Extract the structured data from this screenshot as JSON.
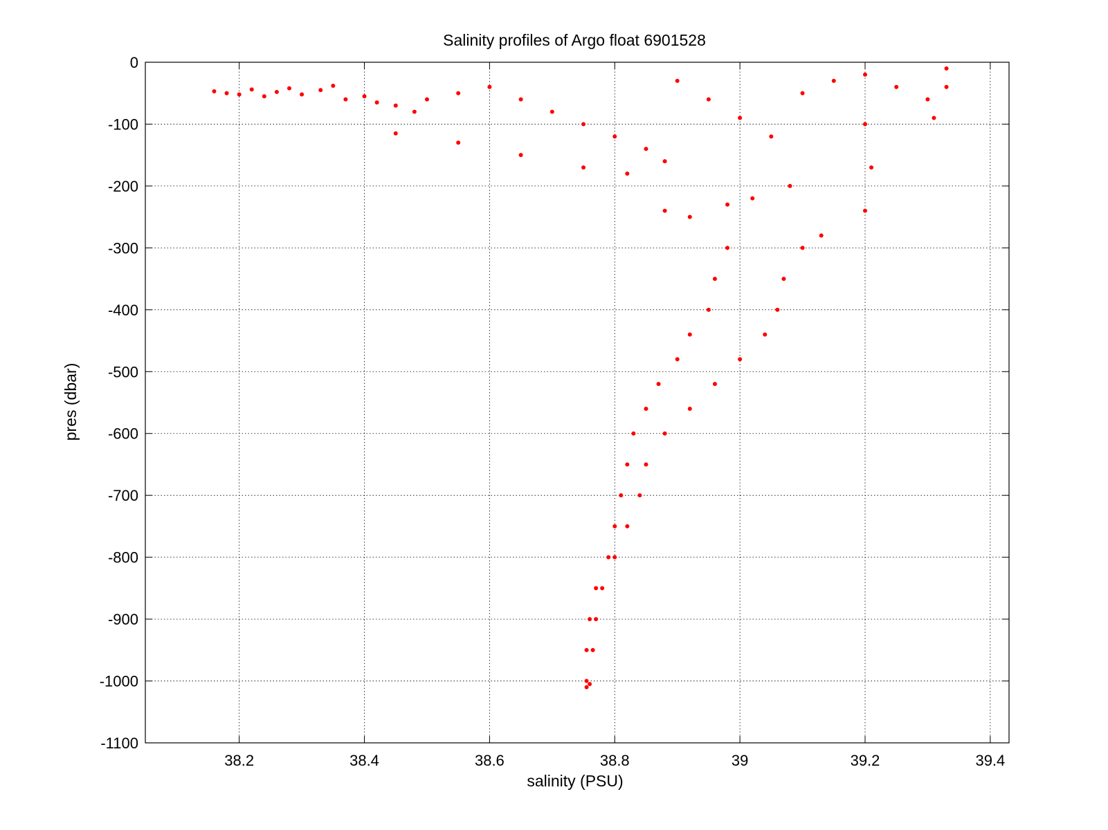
{
  "chart_data": {
    "type": "scatter",
    "title": "Salinity profiles of Argo float 6901528",
    "xlabel": "salinity (PSU)",
    "ylabel": "pres (dbar)",
    "xlim": [
      38.05,
      39.43
    ],
    "ylim": [
      -1100,
      0
    ],
    "xticks": [
      38.2,
      38.4,
      38.6,
      38.8,
      39,
      39.2,
      39.4
    ],
    "xtick_labels": [
      "38.2",
      "38.4",
      "38.6",
      "38.8",
      "39",
      "39.2",
      "39.4"
    ],
    "yticks": [
      0,
      -100,
      -200,
      -300,
      -400,
      -500,
      -600,
      -700,
      -800,
      -900,
      -1000,
      -1100
    ],
    "ytick_labels": [
      "0",
      "-100",
      "-200",
      "-300",
      "-400",
      "-500",
      "-600",
      "-700",
      "-800",
      "-900",
      "-1000",
      "-1100"
    ],
    "grid": true,
    "grid_style": "dotted",
    "series": [
      {
        "marker": "point",
        "color": "#ff0000",
        "points": [
          [
            38.16,
            -47
          ],
          [
            38.18,
            -50
          ],
          [
            38.2,
            -52
          ],
          [
            38.22,
            -44
          ],
          [
            38.24,
            -55
          ],
          [
            38.26,
            -48
          ],
          [
            38.28,
            -42
          ],
          [
            38.3,
            -52
          ],
          [
            38.33,
            -45
          ],
          [
            38.35,
            -38
          ],
          [
            38.37,
            -60
          ],
          [
            38.4,
            -55
          ],
          [
            38.42,
            -65
          ],
          [
            38.45,
            -70
          ],
          [
            38.48,
            -80
          ],
          [
            38.5,
            -60
          ],
          [
            38.55,
            -50
          ],
          [
            38.6,
            -40
          ],
          [
            38.65,
            -60
          ],
          [
            38.7,
            -80
          ],
          [
            38.75,
            -100
          ],
          [
            38.8,
            -120
          ],
          [
            38.85,
            -140
          ],
          [
            38.88,
            -160
          ],
          [
            38.9,
            -30
          ],
          [
            38.95,
            -60
          ],
          [
            39.0,
            -90
          ],
          [
            39.05,
            -120
          ],
          [
            39.1,
            -50
          ],
          [
            39.15,
            -30
          ],
          [
            39.2,
            -20
          ],
          [
            39.25,
            -40
          ],
          [
            39.3,
            -60
          ],
          [
            39.33,
            -10
          ],
          [
            39.33,
            -40
          ],
          [
            39.31,
            -90
          ],
          [
            39.2,
            -100
          ],
          [
            39.21,
            -170
          ],
          [
            39.2,
            -240
          ],
          [
            39.13,
            -280
          ],
          [
            38.88,
            -240
          ],
          [
            38.92,
            -250
          ],
          [
            38.98,
            -230
          ],
          [
            39.02,
            -220
          ],
          [
            39.08,
            -200
          ],
          [
            38.45,
            -115
          ],
          [
            38.55,
            -130
          ],
          [
            38.65,
            -150
          ],
          [
            38.75,
            -170
          ],
          [
            38.82,
            -180
          ],
          [
            38.98,
            -300
          ],
          [
            39.1,
            -300
          ],
          [
            38.96,
            -350
          ],
          [
            39.07,
            -350
          ],
          [
            38.95,
            -400
          ],
          [
            39.06,
            -400
          ],
          [
            38.92,
            -440
          ],
          [
            39.04,
            -440
          ],
          [
            38.9,
            -480
          ],
          [
            39.0,
            -480
          ],
          [
            38.87,
            -520
          ],
          [
            38.96,
            -520
          ],
          [
            38.85,
            -560
          ],
          [
            38.92,
            -560
          ],
          [
            38.83,
            -600
          ],
          [
            38.88,
            -600
          ],
          [
            38.82,
            -650
          ],
          [
            38.85,
            -650
          ],
          [
            38.81,
            -700
          ],
          [
            38.84,
            -700
          ],
          [
            38.8,
            -750
          ],
          [
            38.82,
            -750
          ],
          [
            38.79,
            -800
          ],
          [
            38.8,
            -800
          ],
          [
            38.77,
            -850
          ],
          [
            38.78,
            -850
          ],
          [
            38.76,
            -900
          ],
          [
            38.77,
            -900
          ],
          [
            38.755,
            -950
          ],
          [
            38.765,
            -950
          ],
          [
            38.755,
            -1000
          ],
          [
            38.76,
            -1005
          ],
          [
            38.755,
            -1010
          ]
        ]
      }
    ]
  }
}
